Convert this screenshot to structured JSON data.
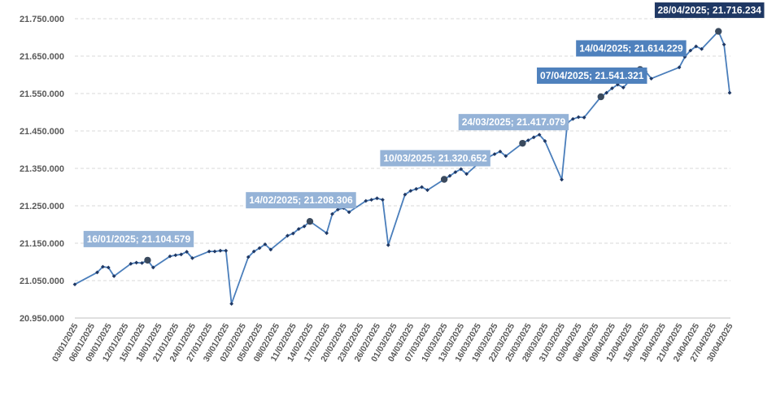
{
  "chart_data": {
    "type": "line",
    "ylim": [
      20950000,
      21750000
    ],
    "yticks": [
      20950000,
      21050000,
      21150000,
      21250000,
      21350000,
      21450000,
      21550000,
      21650000,
      21750000
    ],
    "ytick_labels": [
      "20.950.000",
      "21.050.000",
      "21.150.000",
      "21.250.000",
      "21.350.000",
      "21.450.000",
      "21.550.000",
      "21.650.000",
      "21.750.000"
    ],
    "xrange": [
      "2025-01-03",
      "2025-04-30"
    ],
    "xtick_labels": [
      "03/01/2025",
      "06/01/2025",
      "09/01/2025",
      "12/01/2025",
      "15/01/2025",
      "18/01/2025",
      "21/01/2025",
      "24/01/2025",
      "27/01/2025",
      "30/01/2025",
      "02/02/2025",
      "05/02/2025",
      "08/02/2025",
      "11/02/2025",
      "14/02/2025",
      "17/02/2025",
      "20/02/2025",
      "23/02/2025",
      "26/02/2025",
      "01/03/2025",
      "04/03/2025",
      "07/03/2025",
      "10/03/2025",
      "13/03/2025",
      "16/03/2025",
      "19/03/2025",
      "22/03/2025",
      "25/03/2025",
      "28/03/2025",
      "31/03/2025",
      "03/04/2025",
      "06/04/2025",
      "09/04/2025",
      "12/04/2025",
      "15/04/2025",
      "18/04/2025",
      "21/04/2025",
      "24/04/2025",
      "27/04/2025",
      "30/04/2025"
    ],
    "grid": true,
    "line_color": "#4a7ebb",
    "series": [
      {
        "x": [
          "2025-01-03",
          "2025-01-07",
          "2025-01-08",
          "2025-01-09",
          "2025-01-10",
          "2025-01-13",
          "2025-01-14",
          "2025-01-15",
          "2025-01-16",
          "2025-01-17",
          "2025-01-20",
          "2025-01-21",
          "2025-01-22",
          "2025-01-23",
          "2025-01-24",
          "2025-01-27",
          "2025-01-28",
          "2025-01-29",
          "2025-01-30",
          "2025-01-31",
          "2025-02-03",
          "2025-02-04",
          "2025-02-05",
          "2025-02-06",
          "2025-02-07",
          "2025-02-10",
          "2025-02-11",
          "2025-02-12",
          "2025-02-13",
          "2025-02-14",
          "2025-02-17",
          "2025-02-18",
          "2025-02-19",
          "2025-02-20",
          "2025-02-21",
          "2025-02-24",
          "2025-02-25",
          "2025-02-26",
          "2025-02-27",
          "2025-02-28",
          "2025-03-03",
          "2025-03-04",
          "2025-03-05",
          "2025-03-06",
          "2025-03-07",
          "2025-03-10",
          "2025-03-11",
          "2025-03-12",
          "2025-03-13",
          "2025-03-14",
          "2025-03-17",
          "2025-03-18",
          "2025-03-19",
          "2025-03-20",
          "2025-03-21",
          "2025-03-24",
          "2025-03-25",
          "2025-03-26",
          "2025-03-27",
          "2025-03-28",
          "2025-03-31",
          "2025-04-01",
          "2025-04-02",
          "2025-04-03",
          "2025-04-04",
          "2025-04-07",
          "2025-04-08",
          "2025-04-09",
          "2025-04-10",
          "2025-04-11",
          "2025-04-14",
          "2025-04-15",
          "2025-04-16",
          "2025-04-21",
          "2025-04-22",
          "2025-04-23",
          "2025-04-24",
          "2025-04-25",
          "2025-04-28",
          "2025-04-29",
          "2025-04-30"
        ],
        "values": [
          21040000,
          21072000,
          21087000,
          21085000,
          21062000,
          21095000,
          21098000,
          21097000,
          21104579,
          21085000,
          21115000,
          21118000,
          21120000,
          21127000,
          21110000,
          21128000,
          21128000,
          21130000,
          21130000,
          20988000,
          21113000,
          21128000,
          21137000,
          21147000,
          21133000,
          21170000,
          21176000,
          21188000,
          21195000,
          21208306,
          21177000,
          21228000,
          21240000,
          21244000,
          21233000,
          21263000,
          21266000,
          21270000,
          21266000,
          21145000,
          21280000,
          21290000,
          21295000,
          21300000,
          21292000,
          21320652,
          21330000,
          21340000,
          21348000,
          21335000,
          21375000,
          21381000,
          21388000,
          21395000,
          21383000,
          21417079,
          21425000,
          21433000,
          21440000,
          21423000,
          21320000,
          21472000,
          21482000,
          21487000,
          21486000,
          21541321,
          21552000,
          21564000,
          21574000,
          21566000,
          21614229,
          21609000,
          21590000,
          21620000,
          21648000,
          21665000,
          21676000,
          21669000,
          21716234,
          21681000,
          21552000
        ]
      }
    ],
    "highlights": [
      {
        "x": "2025-01-16",
        "y": 21104579,
        "label": "16/01/2025; 21.104.579",
        "bg": "#95b3d7"
      },
      {
        "x": "2025-02-14",
        "y": 21208306,
        "label": "14/02/2025; 21.208.306",
        "bg": "#95b3d7"
      },
      {
        "x": "2025-03-10",
        "y": 21320652,
        "label": "10/03/2025; 21.320.652",
        "bg": "#95b3d7"
      },
      {
        "x": "2025-03-24",
        "y": 21417079,
        "label": "24/03/2025; 21.417.079",
        "bg": "#95b3d7"
      },
      {
        "x": "2025-04-07",
        "y": 21541321,
        "label": "07/04/2025; 21.541.321",
        "bg": "#4f81bd"
      },
      {
        "x": "2025-04-14",
        "y": 21614229,
        "label": "14/04/2025; 21.614.229",
        "bg": "#4f81bd"
      },
      {
        "x": "2025-04-28",
        "y": 21716234,
        "label": "28/04/2025; 21.716.234",
        "bg": "#1f3864"
      }
    ]
  }
}
